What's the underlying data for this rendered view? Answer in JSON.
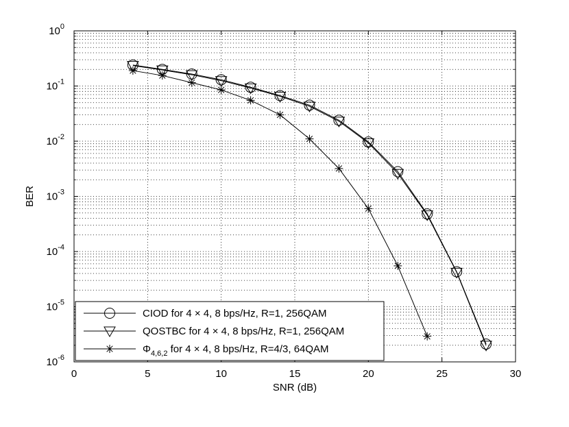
{
  "chart_data": {
    "type": "line",
    "xlabel": "SNR (dB)",
    "ylabel": "BER",
    "xlim": [
      0,
      30
    ],
    "ylim": [
      1e-06,
      1
    ],
    "yscale": "log",
    "grid": true,
    "legend_position": "bottom-left",
    "x_ticks": [
      0,
      5,
      10,
      15,
      20,
      25,
      30
    ],
    "y_tick_exponents": [
      0,
      -1,
      -2,
      -3,
      -4,
      -5,
      -6
    ],
    "series": [
      {
        "name": "CIOD for 4 × 4, 8 bps/Hz, R=1, 256QAM",
        "marker": "circle",
        "x": [
          4,
          6,
          8,
          10,
          12,
          14,
          16,
          18,
          20,
          22,
          24,
          26,
          28
        ],
        "y": [
          0.24,
          0.2,
          0.165,
          0.13,
          0.095,
          0.067,
          0.045,
          0.024,
          0.0097,
          0.0028,
          0.00048,
          4.3e-05,
          2.1e-06
        ]
      },
      {
        "name": "QOSTBC for 4 × 4, 8 bps/Hz, R=1, 256QAM",
        "marker": "triangle-down",
        "x": [
          4,
          6,
          8,
          10,
          12,
          14,
          16,
          18,
          20,
          22,
          24,
          26,
          28
        ],
        "y": [
          0.235,
          0.195,
          0.16,
          0.125,
          0.092,
          0.065,
          0.043,
          0.023,
          0.0093,
          0.0026,
          0.00046,
          4.2e-05,
          2e-06
        ]
      },
      {
        "name_main": "Φ",
        "name_sub": "4,6,2",
        "name_rest": " for 4 × 4, 8 bps/Hz, R=4/3, 64QAM",
        "marker": "asterisk",
        "x": [
          4,
          6,
          8,
          10,
          12,
          14,
          16,
          18,
          20,
          22,
          24
        ],
        "y": [
          0.19,
          0.155,
          0.115,
          0.085,
          0.055,
          0.03,
          0.011,
          0.0032,
          0.0006,
          5.5e-05,
          2.9e-06
        ]
      }
    ]
  }
}
